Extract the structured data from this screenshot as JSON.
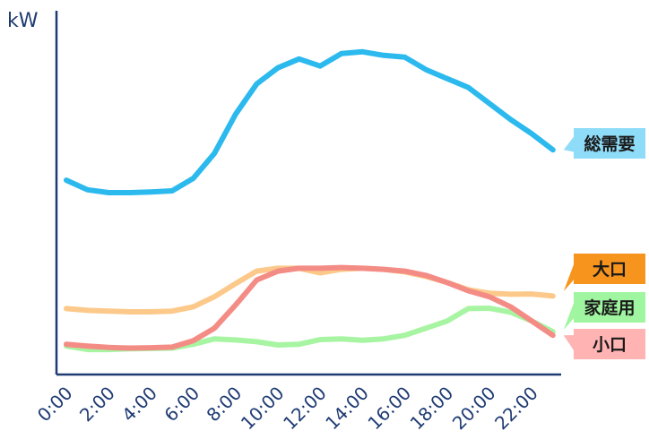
{
  "chart_data": {
    "type": "line",
    "ylabel": "kW",
    "x": [
      0,
      1,
      2,
      3,
      4,
      5,
      6,
      7,
      8,
      9,
      10,
      11,
      12,
      13,
      14,
      15,
      16,
      17,
      18,
      19,
      20,
      21,
      22,
      23
    ],
    "tick_labels": [
      "0:00",
      "2:00",
      "4:00",
      "6:00",
      "8:00",
      "10:00",
      "12:00",
      "14:00",
      "16:00",
      "18:00",
      "20:00",
      "22:00"
    ],
    "series": [
      {
        "name": "総需要",
        "color": "#2bb9ee",
        "label_bg": "#8fdcf8",
        "values": [
          54.5,
          51.8,
          51.0,
          51.0,
          51.2,
          51.5,
          55.0,
          62.0,
          73.0,
          81.5,
          86.0,
          88.5,
          86.5,
          90.0,
          90.5,
          89.5,
          89.0,
          85.5,
          83.0,
          80.5,
          76.0,
          71.5,
          67.5,
          63.0
        ]
      },
      {
        "name": "大口",
        "color": "#fcc98a",
        "label_bg": "#f7941d",
        "values": [
          18.5,
          18.0,
          17.8,
          17.6,
          17.6,
          17.8,
          19.0,
          21.8,
          25.5,
          29.0,
          29.8,
          29.8,
          28.5,
          29.5,
          29.8,
          29.5,
          28.8,
          27.5,
          25.8,
          23.8,
          22.8,
          22.5,
          22.6,
          22.0
        ]
      },
      {
        "name": "家庭用",
        "color": "#a7f5a2",
        "label_bg": "#9ff5a0",
        "values": [
          8.0,
          7.0,
          7.0,
          7.2,
          7.3,
          7.4,
          8.5,
          10.0,
          9.7,
          9.2,
          8.3,
          8.5,
          9.8,
          10.0,
          9.6,
          10.0,
          11.0,
          13.0,
          15.0,
          18.5,
          18.6,
          17.5,
          15.0,
          12.0
        ]
      },
      {
        "name": "小口",
        "color": "#f48c86",
        "label_bg": "#ffb3b3",
        "values": [
          8.5,
          8.0,
          7.6,
          7.4,
          7.5,
          7.7,
          9.5,
          13.0,
          19.5,
          26.5,
          29.0,
          29.8,
          29.8,
          30.0,
          29.8,
          29.5,
          29.0,
          27.8,
          25.8,
          23.5,
          21.8,
          19.0,
          15.0,
          11.0
        ]
      }
    ],
    "ylim": [
      0,
      100
    ],
    "grid": false,
    "legend": "right"
  }
}
